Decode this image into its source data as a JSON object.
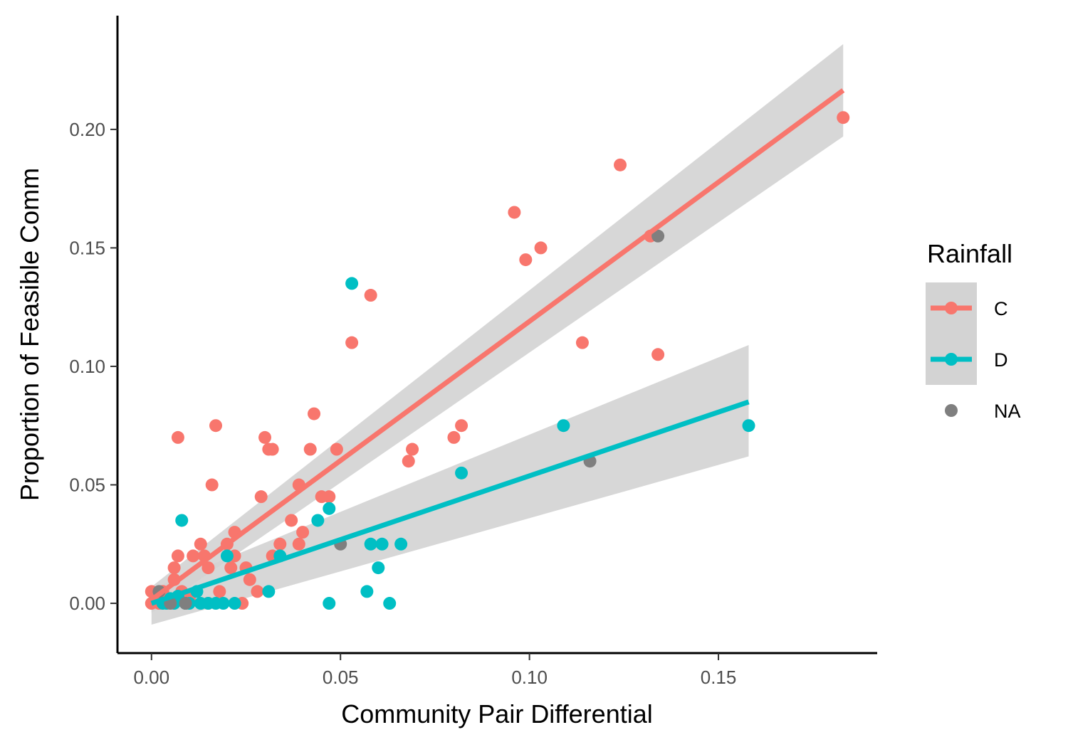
{
  "chart_data": {
    "type": "scatter",
    "title": "",
    "xlabel": "Community Pair Differential",
    "ylabel": "Proportion of Feasible Comm",
    "xlim": [
      -0.009,
      0.192
    ],
    "ylim": [
      -0.021,
      0.248
    ],
    "x_ticks": [
      0.0,
      0.05,
      0.1,
      0.15
    ],
    "x_tick_labels": [
      "0.00",
      "0.05",
      "0.10",
      "0.15"
    ],
    "y_ticks": [
      0.0,
      0.05,
      0.1,
      0.15,
      0.2
    ],
    "y_tick_labels": [
      "0.00",
      "0.05",
      "0.10",
      "0.15",
      "0.20"
    ],
    "grid": false,
    "legend": {
      "title": "Rainfall",
      "placement": "right",
      "entries": [
        "C",
        "D",
        "NA"
      ]
    },
    "colors": {
      "C": "#F8766D",
      "D": "#00BFC4",
      "NA": "#7F7F7F",
      "ribbon": "#D3D3D3"
    },
    "series": [
      {
        "name": "C",
        "points": [
          [
            0.0,
            0.005
          ],
          [
            0.0,
            0.0
          ],
          [
            0.002,
            0.0
          ],
          [
            0.003,
            0.005
          ],
          [
            0.004,
            0.002
          ],
          [
            0.006,
            0.01
          ],
          [
            0.006,
            0.015
          ],
          [
            0.007,
            0.02
          ],
          [
            0.007,
            0.07
          ],
          [
            0.008,
            0.005
          ],
          [
            0.01,
            0.002
          ],
          [
            0.011,
            0.02
          ],
          [
            0.013,
            0.025
          ],
          [
            0.014,
            0.02
          ],
          [
            0.015,
            0.015
          ],
          [
            0.015,
            0.0
          ],
          [
            0.016,
            0.05
          ],
          [
            0.017,
            0.075
          ],
          [
            0.018,
            0.005
          ],
          [
            0.02,
            0.025
          ],
          [
            0.021,
            0.015
          ],
          [
            0.022,
            0.03
          ],
          [
            0.022,
            0.02
          ],
          [
            0.024,
            0.0
          ],
          [
            0.025,
            0.015
          ],
          [
            0.026,
            0.01
          ],
          [
            0.028,
            0.005
          ],
          [
            0.029,
            0.045
          ],
          [
            0.03,
            0.07
          ],
          [
            0.031,
            0.065
          ],
          [
            0.032,
            0.065
          ],
          [
            0.032,
            0.02
          ],
          [
            0.034,
            0.025
          ],
          [
            0.037,
            0.035
          ],
          [
            0.039,
            0.05
          ],
          [
            0.039,
            0.025
          ],
          [
            0.04,
            0.03
          ],
          [
            0.042,
            0.065
          ],
          [
            0.043,
            0.08
          ],
          [
            0.045,
            0.045
          ],
          [
            0.047,
            0.045
          ],
          [
            0.049,
            0.065
          ],
          [
            0.053,
            0.11
          ],
          [
            0.058,
            0.13
          ],
          [
            0.068,
            0.06
          ],
          [
            0.069,
            0.065
          ],
          [
            0.08,
            0.07
          ],
          [
            0.082,
            0.075
          ],
          [
            0.096,
            0.165
          ],
          [
            0.099,
            0.145
          ],
          [
            0.103,
            0.15
          ],
          [
            0.114,
            0.11
          ],
          [
            0.124,
            0.185
          ],
          [
            0.132,
            0.155
          ],
          [
            0.134,
            0.105
          ],
          [
            0.183,
            0.205
          ]
        ],
        "fit": {
          "x": [
            0.0,
            0.183
          ],
          "y": [
            0.0015,
            0.2165
          ]
        },
        "ribbon": {
          "x": [
            0.0,
            0.183
          ],
          "lower": [
            -0.004,
            0.197
          ],
          "upper": [
            0.007,
            0.236
          ]
        }
      },
      {
        "name": "D",
        "points": [
          [
            0.003,
            0.0
          ],
          [
            0.004,
            0.0
          ],
          [
            0.005,
            0.002
          ],
          [
            0.006,
            0.0
          ],
          [
            0.007,
            0.003
          ],
          [
            0.008,
            0.035
          ],
          [
            0.009,
            0.0
          ],
          [
            0.01,
            0.0
          ],
          [
            0.012,
            0.005
          ],
          [
            0.013,
            0.0
          ],
          [
            0.015,
            0.0
          ],
          [
            0.017,
            0.0
          ],
          [
            0.019,
            0.0
          ],
          [
            0.02,
            0.02
          ],
          [
            0.022,
            0.0
          ],
          [
            0.031,
            0.005
          ],
          [
            0.034,
            0.02
          ],
          [
            0.044,
            0.035
          ],
          [
            0.047,
            0.04
          ],
          [
            0.047,
            0.0
          ],
          [
            0.053,
            0.135
          ],
          [
            0.057,
            0.005
          ],
          [
            0.058,
            0.025
          ],
          [
            0.06,
            0.015
          ],
          [
            0.061,
            0.025
          ],
          [
            0.063,
            0.0
          ],
          [
            0.066,
            0.025
          ],
          [
            0.082,
            0.055
          ],
          [
            0.109,
            0.075
          ],
          [
            0.158,
            0.075
          ]
        ],
        "fit": {
          "x": [
            0.0,
            0.158
          ],
          "y": [
            0.0,
            0.085
          ]
        },
        "ribbon": {
          "x": [
            0.0,
            0.158
          ],
          "lower": [
            -0.009,
            0.062
          ],
          "upper": [
            0.006,
            0.109
          ]
        }
      },
      {
        "name": "NA",
        "points": [
          [
            0.002,
            0.005
          ],
          [
            0.005,
            0.0
          ],
          [
            0.009,
            0.0
          ],
          [
            0.05,
            0.025
          ],
          [
            0.116,
            0.06
          ],
          [
            0.134,
            0.155
          ]
        ]
      }
    ]
  }
}
